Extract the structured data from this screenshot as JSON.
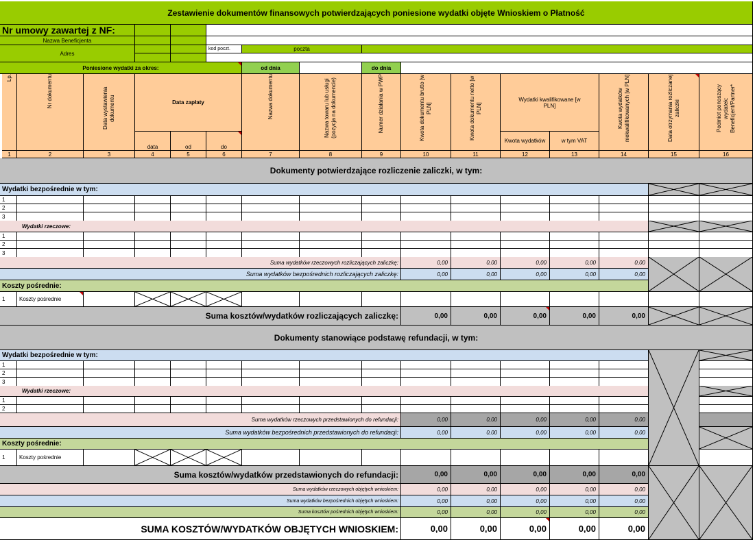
{
  "title": "Zestawienie dokumentów finansowych potwierdzających poniesione wydatki objęte Wnioskiem o Płatność",
  "header": {
    "nr_umowy": "Nr umowy zawartej z NF:",
    "nazwa_beneficjenta": "Nazwa Beneficjenta",
    "adres": "Adres",
    "kod_pocztowy": "kod poczt.",
    "poczta": "poczta",
    "okres": "Poniesione wydatki za okres:",
    "od_dnia": "od dnia",
    "do_dnia": "do dnia"
  },
  "columns": {
    "lp": "Lp.",
    "nr_dokumentu": "Nr dokumentu",
    "data_wystawienia": "Data wystawienia dokumentu",
    "data_zaplaty": "Data zapłaty",
    "data": "data",
    "od": "od",
    "do": "do",
    "nazwa_dokumentu": "Nazwa dokumentu",
    "nazwa_towaru": "Nazwa towaru lub usługi (pozycja na dokumencie)",
    "numer_dzialania": "Numer działania w PWP",
    "kwota_brutto": "Kwota dokumentu brutto [w PLN]",
    "kwota_netto": "Kwota dokumentu netto [w PLN]",
    "wydatki_kwalifikowane": "Wydatki kwalifikowane [w PLN]",
    "kwota_wydatkow": "Kwota wydatków",
    "w_tym_vat": "w tym VAT",
    "kwota_niekwal": "Kwota wydatków niekwalifikowanych [w PLN]",
    "data_otrzymania": "Data otrzymania rozliczanej zaliczki",
    "podmiot": "Podmiot ponoszący wydatek: Beneficjent/Partner*"
  },
  "col_numbers": [
    "1",
    "2",
    "3",
    "4",
    "5",
    "6",
    "7",
    "8",
    "9",
    "10",
    "11",
    "12",
    "13",
    "14",
    "15",
    "16"
  ],
  "section1": {
    "title": "Dokumenty potwierdzające rozliczenie zaliczki, w tym:",
    "wb": "Wydatki bezpośrednie w tym:",
    "wr": "Wydatki rzeczowe:",
    "rows_wb": [
      "1",
      "2",
      "3"
    ],
    "rows_wr": [
      "1",
      "2",
      "3"
    ],
    "suma_wr": "Suma wydatków rzeczowych rozliczających zaliczkę:",
    "suma_wb": "Suma wydatków bezpośrednich rozliczających zaliczkę:",
    "kp": "Koszty pośrednie:",
    "kp_row_num": "1",
    "kp_row": "Koszty pośrednie",
    "suma_total": "Suma kosztów/wydatków rozliczających zaliczkę:"
  },
  "section2": {
    "title": "Dokumenty stanowiące podstawę refundacji, w tym:",
    "wb": "Wydatki bezpośrednie w tym:",
    "wr": "Wydatki rzeczowe:",
    "rows_wb": [
      "1",
      "2",
      "3"
    ],
    "rows_wr": [
      "1",
      "2"
    ],
    "suma_wr": "Suma wydatków rzeczowych przedstawionych do refundacji:",
    "suma_wb": "Suma wydatków bezpośrednich przedstawionych do refundacji:",
    "kp": "Koszty pośrednie:",
    "kp_row_num": "1",
    "kp_row": "Koszty pośrednie",
    "suma_total": "Suma kosztów/wydatków przedstawionych do refundacji:"
  },
  "footer": {
    "suma_wr": "Suma wydatków rzeczowych objętych wnioskiem:",
    "suma_wb": "Suma wydatków bezpośrednich objętych wnioskiem:",
    "suma_kp": "Suma kosztów pośrednich objętych wnioskiem:",
    "suma_total": "SUMA KOSZTÓW/WYDATKÓW OBJĘTYCH WNIOSKIEM:"
  },
  "zero": "0,00",
  "colors": {
    "title_bg": "#99CC00",
    "header_bg": "#FFCC99",
    "section_bg": "#C0C0C0",
    "blue_bg": "#CCDDF0",
    "pink_bg": "#F2DCDB",
    "green_bg": "#C4D79B",
    "comment_marker": "#C00000"
  }
}
